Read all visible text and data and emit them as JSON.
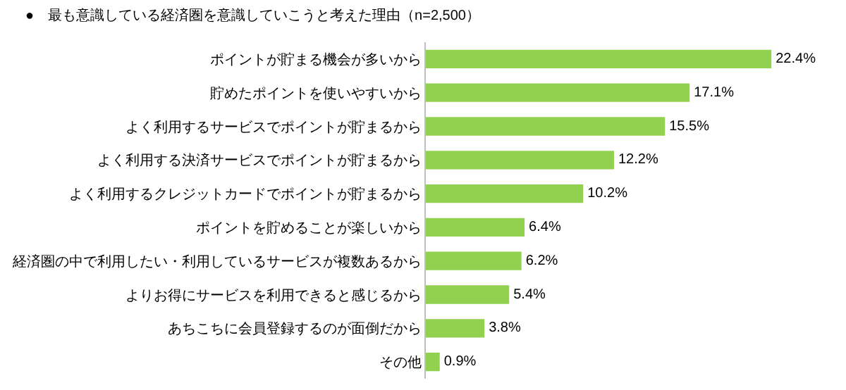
{
  "chart_data": {
    "type": "bar",
    "orientation": "horizontal",
    "title": "●　最も意識している経済圏を意識していこうと考えた理由（n=2,500）",
    "categories": [
      "ポイントが貯まる機会が多いから",
      "貯めたポイントを使いやすいから",
      "よく利用するサービスでポイントが貯まるから",
      "よく利用する決済サービスでポイントが貯まるから",
      "よく利用するクレジットカードでポイントが貯まるから",
      "ポイントを貯めることが楽しいから",
      "経済圏の中で利用したい・利用しているサービスが複数あるから",
      "よりお得にサービスを利用できると感じるから",
      "あちこちに会員登録するのが面倒だから",
      "その他"
    ],
    "values": [
      22.4,
      17.1,
      15.5,
      12.2,
      10.2,
      6.4,
      6.2,
      5.4,
      3.8,
      0.9
    ],
    "color": "#92d050",
    "value_labels": [
      "22.4%",
      "17.1%",
      "15.5%",
      "12.2%",
      "10.2%",
      "6.4%",
      "6.2%",
      "5.4%",
      "3.8%",
      "0.9%"
    ],
    "grid": false,
    "legend": false
  }
}
